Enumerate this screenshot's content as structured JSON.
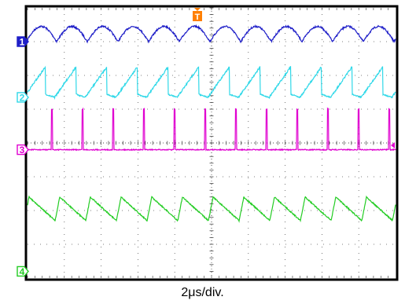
{
  "chart_data": {
    "type": "line",
    "x_unit": "2μs/div.",
    "grid": true,
    "divisions": {
      "horizontal": 10,
      "vertical": 8
    },
    "trigger_marker": "T",
    "series": [
      {
        "name": "1",
        "color": "#1f1fc8",
        "shape": "arch",
        "periods": 12,
        "baseline_div": 1.0,
        "amplitude_div": 0.45,
        "phase": 0.05
      },
      {
        "name": "2",
        "color": "#2fd8e8",
        "shape": "ramp",
        "periods": 12,
        "baseline_div": 2.65,
        "amplitude_div": 0.9,
        "phase": 0.12
      },
      {
        "name": "3",
        "color": "#e000d0",
        "shape": "pulse",
        "periods": 12,
        "baseline_div": 4.2,
        "amplitude_div": 1.2,
        "phase": 0.22
      },
      {
        "name": "4",
        "color": "#22cc22",
        "shape": "saw",
        "periods": 12,
        "baseline_div": 5.95,
        "amplitude_div": 0.35,
        "phase": 0.1
      }
    ],
    "markers": [
      {
        "name": "1",
        "color": "#1f1fc8",
        "filled": true
      },
      {
        "name": "2",
        "color": "#2fd8e8",
        "filled": false
      },
      {
        "name": "3",
        "color": "#e000d0",
        "filled": false
      },
      {
        "name": "4",
        "color": "#22cc22",
        "filled": false
      }
    ]
  }
}
